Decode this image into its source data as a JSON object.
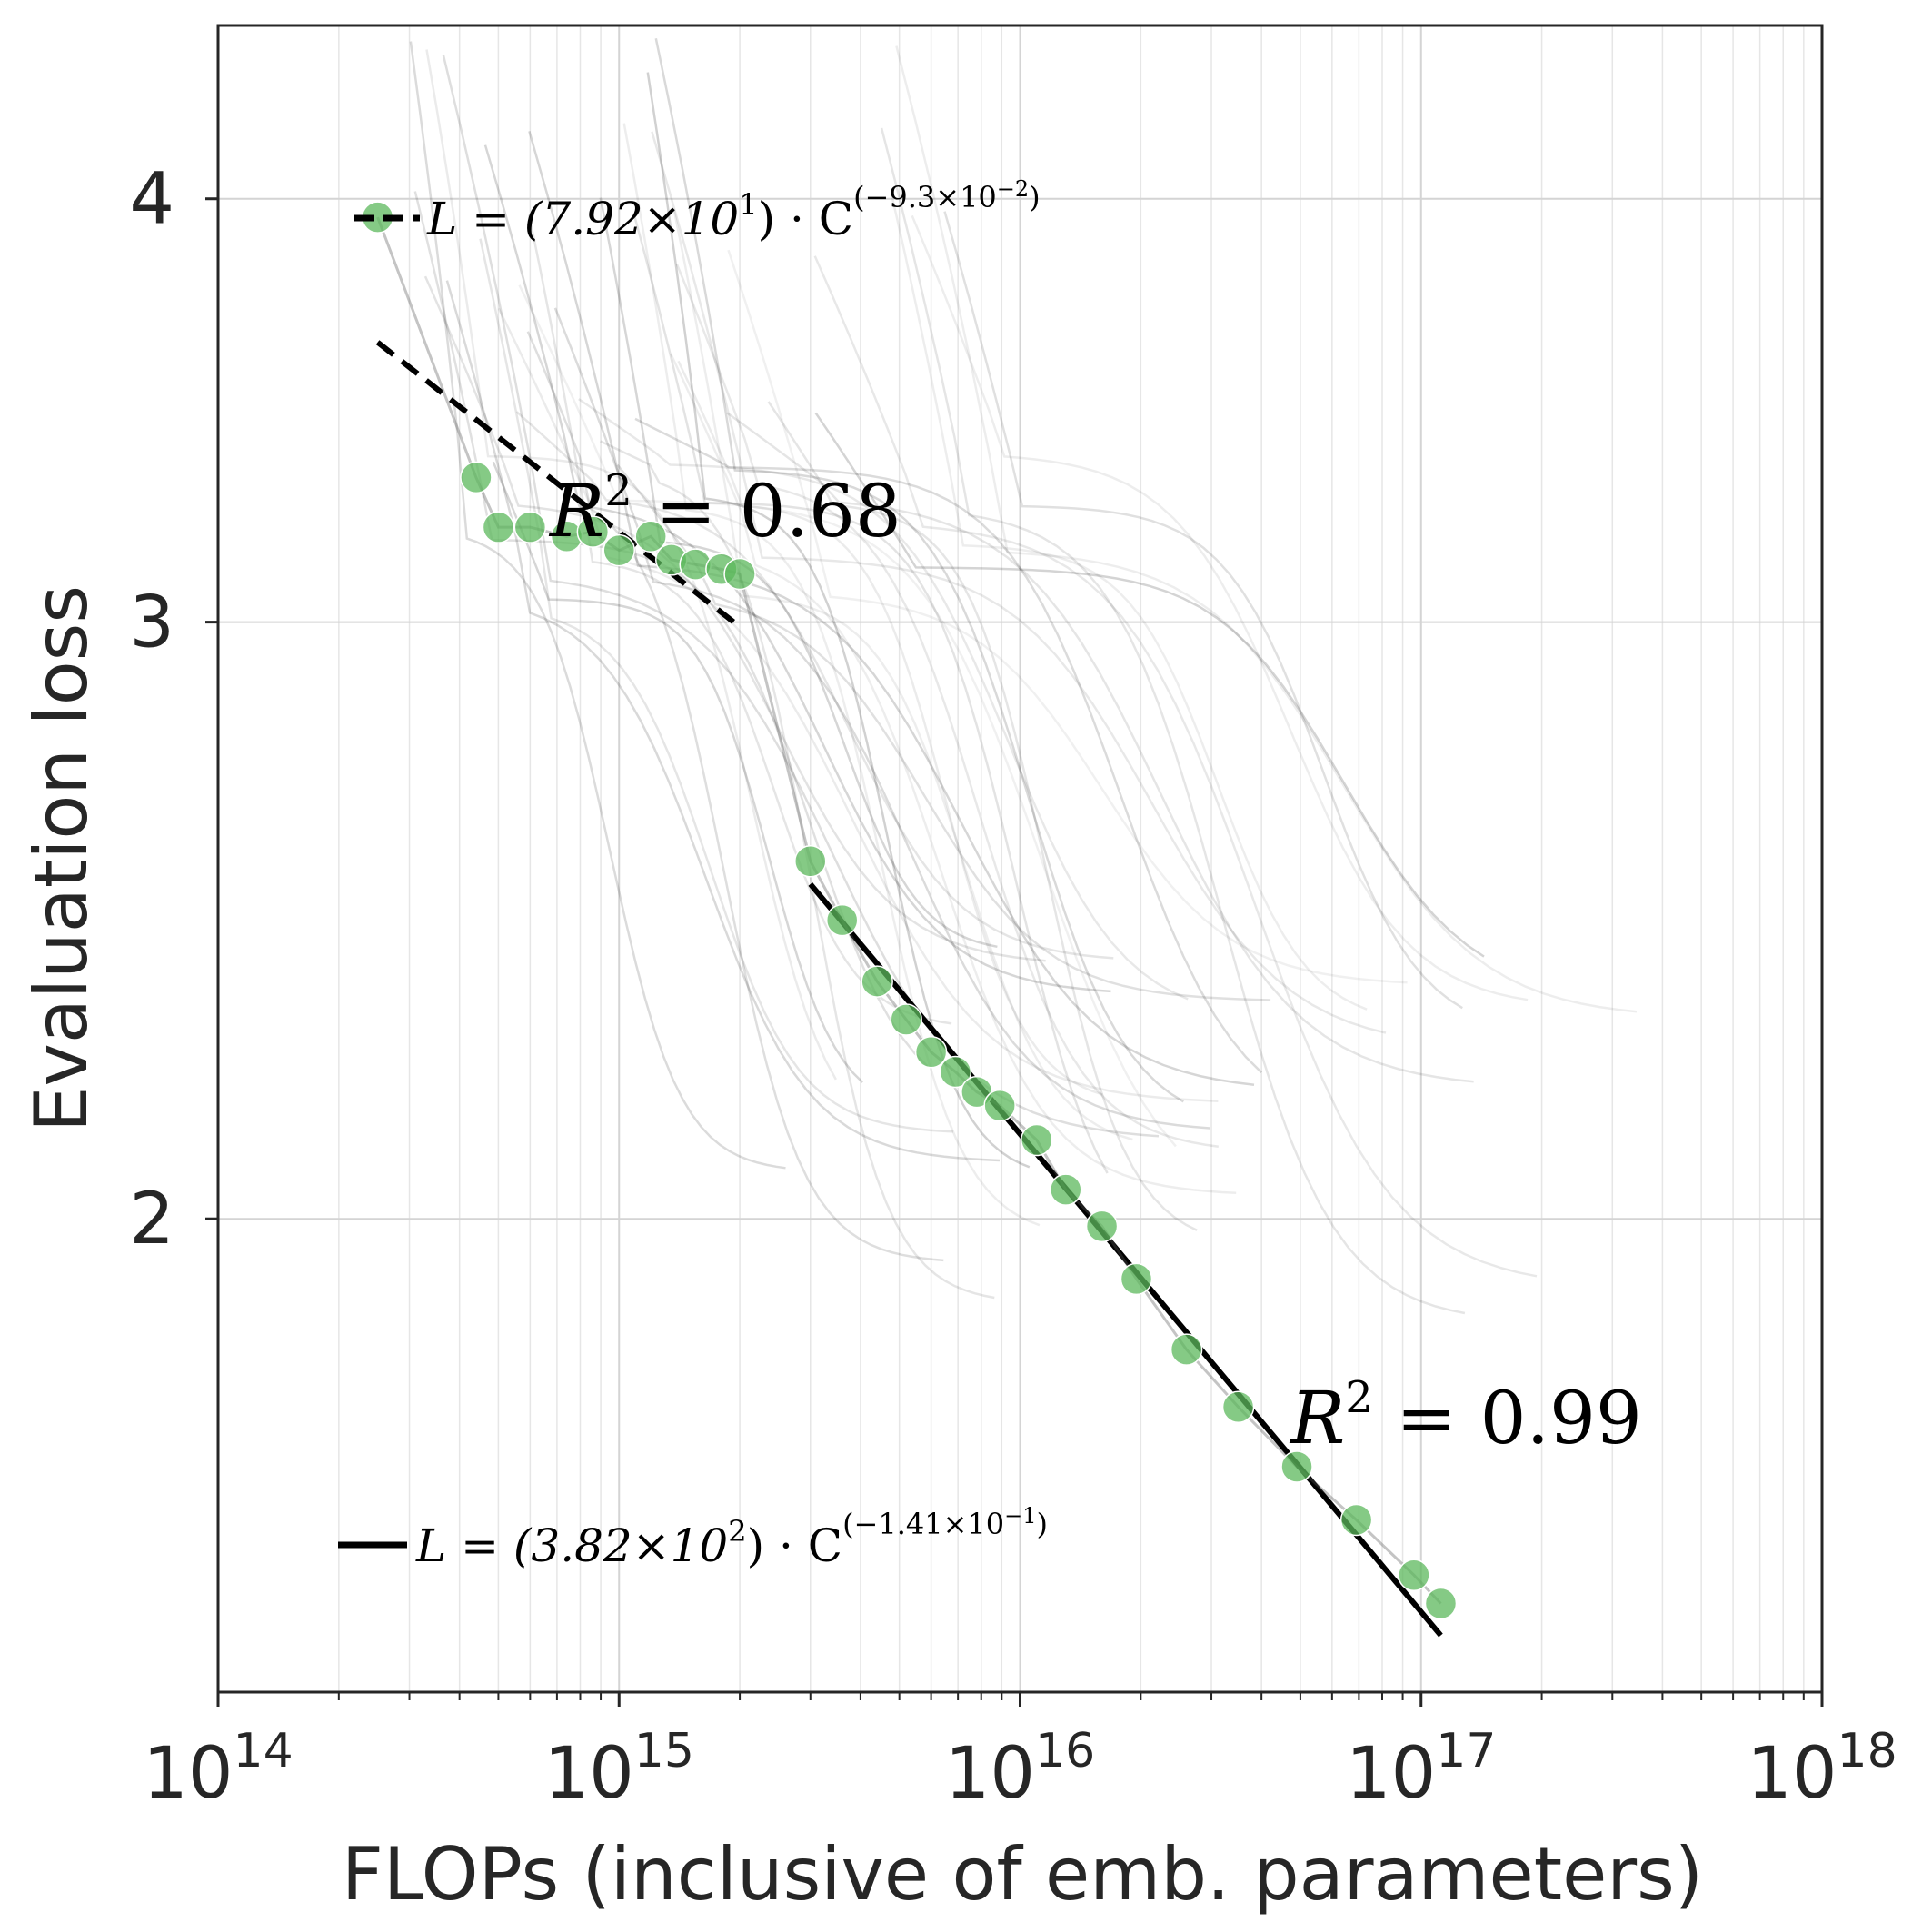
{
  "chart_data": {
    "type": "scatter",
    "xlabel": "FLOPs (inclusive of emb. parameters)",
    "ylabel": "Evaluation loss",
    "xscale": "log",
    "yscale": "log",
    "xlim": [
      100000000000000.0,
      1e+18
    ],
    "ylim": [
      1.45,
      4.5
    ],
    "grid": true,
    "x_ticks": [
      {
        "value": 100000000000000.0,
        "base": "10",
        "exp": "14"
      },
      {
        "value": 1000000000000000.0,
        "base": "10",
        "exp": "15"
      },
      {
        "value": 1e+16,
        "base": "10",
        "exp": "16"
      },
      {
        "value": 1e+17,
        "base": "10",
        "exp": "17"
      },
      {
        "value": 1e+18,
        "base": "10",
        "exp": "18"
      }
    ],
    "y_ticks": [
      {
        "value": 2,
        "label": "2"
      },
      {
        "value": 3,
        "label": "3"
      },
      {
        "value": 4,
        "label": "4"
      }
    ],
    "frontier_points": {
      "color": "#5cb85c",
      "x": [
        250000000000000.0,
        440000000000000.0,
        500000000000000.0,
        600000000000000.0,
        740000000000000.0,
        860000000000000.0,
        1000000000000000.0,
        1200000000000000.0,
        1350000000000000.0,
        1550000000000000.0,
        1800000000000000.0,
        2000000000000000.0,
        3000000000000000.0,
        3600000000000000.0,
        4400000000000000.0,
        5200000000000000.0,
        6000000000000000.0,
        6900000000000000.0,
        7800000000000000.0,
        8900000000000000.0,
        1.1e+16,
        1.3e+16,
        1.6e+16,
        1.95e+16,
        2.6e+16,
        3.5e+16,
        4.9e+16,
        6.9e+16,
        9.6e+16,
        1.12e+17
      ],
      "y": [
        3.95,
        3.31,
        3.2,
        3.2,
        3.18,
        3.19,
        3.15,
        3.18,
        3.13,
        3.12,
        3.11,
        3.1,
        2.55,
        2.45,
        2.35,
        2.29,
        2.24,
        2.21,
        2.18,
        2.16,
        2.11,
        2.04,
        1.99,
        1.92,
        1.83,
        1.76,
        1.69,
        1.63,
        1.57,
        1.54
      ]
    },
    "fits": [
      {
        "style": "dashed",
        "color": "#000000",
        "x_range": [
          250000000000000.0,
          2000000000000000.0
        ],
        "coef": 79.2,
        "exponent": -0.093,
        "r2_text": "0.68"
      },
      {
        "style": "solid",
        "color": "#000000",
        "x_range": [
          3000000000000000.0,
          1.12e+17
        ],
        "coef": 382,
        "exponent": -0.141,
        "r2_text": "0.99"
      }
    ],
    "annotations": {
      "legend_dashed": {
        "prefix": "L = (7.92×10",
        "coef_exp": "1",
        "mid": ") · C",
        "power": "(−9.3×10",
        "power_exp": "−2",
        "close": ")"
      },
      "legend_solid": {
        "prefix": "L = (3.82×10",
        "coef_exp": "2",
        "mid": ") · C",
        "power": "(−1.41×10",
        "power_exp": "−1",
        "close": ")"
      },
      "r2_dashed": {
        "r": "R",
        "sup": "2",
        "rest": " = 0.68"
      },
      "r2_solid": {
        "r": "R",
        "sup": "2",
        "rest": " = 0.99"
      }
    },
    "background_curves": {
      "color": "#000000",
      "description_count": 40
    }
  }
}
